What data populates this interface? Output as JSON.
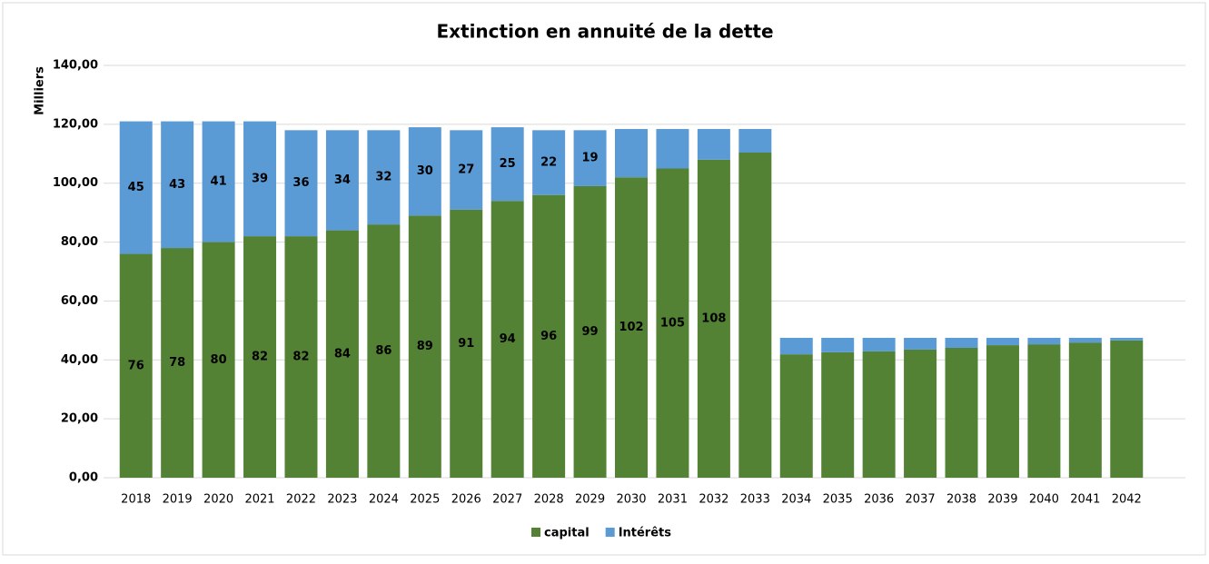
{
  "chart_data": {
    "type": "stacked_bar",
    "title": "Extinction en annuité de la dette",
    "y_label": "Milliers",
    "categories": [
      "2018",
      "2019",
      "2020",
      "2021",
      "2022",
      "2023",
      "2024",
      "2025",
      "2026",
      "2027",
      "2028",
      "2029",
      "2030",
      "2031",
      "2032",
      "2033",
      "2034",
      "2035",
      "2036",
      "2037",
      "2038",
      "2039",
      "2040",
      "2041",
      "2042"
    ],
    "series": [
      {
        "name": "capital",
        "color": "#548235",
        "values": [
          76,
          78,
          80,
          82,
          82,
          84,
          86,
          89,
          91,
          94,
          96,
          99,
          102,
          105,
          108,
          110.4,
          41.9,
          42.6,
          42.9,
          43.5,
          44.1,
          45.0,
          45.3,
          45.9,
          46.6
        ],
        "value_labels": [
          "76",
          "78",
          "80",
          "82",
          "82",
          "84",
          "86",
          "89",
          "91",
          "94",
          "96",
          "99",
          "102",
          "105",
          "108",
          null,
          null,
          null,
          null,
          null,
          null,
          null,
          null,
          null,
          null
        ]
      },
      {
        "name": "Intérêts",
        "color": "#5b9bd5",
        "values": [
          45,
          43,
          41,
          39,
          36,
          34,
          32,
          30,
          27,
          25,
          22,
          19,
          16.4,
          13.4,
          10.4,
          8.0,
          5.6,
          4.9,
          4.6,
          4.0,
          3.4,
          2.5,
          2.2,
          1.6,
          0.9
        ],
        "value_labels": [
          "45",
          "43",
          "41",
          "39",
          "36",
          "34",
          "32",
          "30",
          "27",
          "25",
          "22",
          "19",
          null,
          null,
          null,
          null,
          null,
          null,
          null,
          null,
          null,
          null,
          null,
          null,
          null
        ]
      }
    ],
    "ylim": [
      0,
      140
    ],
    "yticks": [
      {
        "value": 0,
        "label": "0,00"
      },
      {
        "value": 20,
        "label": "20,00"
      },
      {
        "value": 40,
        "label": "40,00"
      },
      {
        "value": 60,
        "label": "60,00"
      },
      {
        "value": 80,
        "label": "80,00"
      },
      {
        "value": 100,
        "label": "100,00"
      },
      {
        "value": 120,
        "label": "120,00"
      },
      {
        "value": 140,
        "label": "140,00"
      }
    ],
    "grid": true,
    "legend": "bottom"
  }
}
